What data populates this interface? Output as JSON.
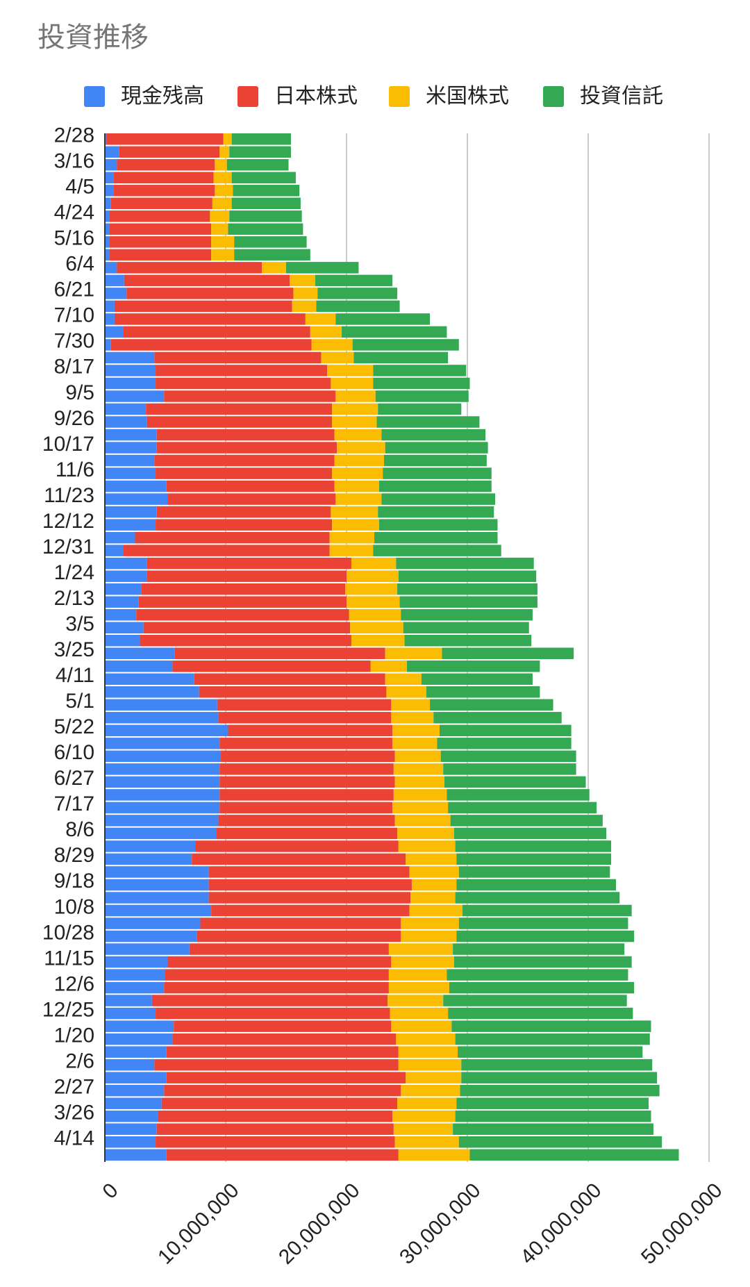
{
  "chart_data": {
    "type": "bar",
    "orientation": "horizontal",
    "stacked": true,
    "title": "投資推移",
    "legend_position": "top",
    "grid": true,
    "xlim": [
      0,
      50000000
    ],
    "x_ticks": [
      0,
      10000000,
      20000000,
      30000000,
      40000000,
      50000000
    ],
    "x_tick_labels": [
      "0",
      "10,000,000",
      "20,000,000",
      "30,000,000",
      "40,000,000",
      "50,000,000"
    ],
    "categories": [
      "2/28",
      "",
      "3/16",
      "",
      "4/5",
      "",
      "4/24",
      "",
      "5/16",
      "",
      "6/4",
      "",
      "6/21",
      "",
      "7/10",
      "",
      "7/30",
      "",
      "8/17",
      "",
      "9/5",
      "",
      "9/26",
      "",
      "10/17",
      "",
      "11/6",
      "",
      "11/23",
      "",
      "12/12",
      "",
      "12/31",
      "",
      "1/24",
      "",
      "2/13",
      "",
      "3/5",
      "",
      "3/25",
      "",
      "4/11",
      "",
      "5/1",
      "",
      "5/22",
      "",
      "6/10",
      "",
      "6/27",
      "",
      "7/17",
      "",
      "8/6",
      "",
      "8/29",
      "",
      "9/18",
      "",
      "10/8",
      "",
      "10/28",
      "",
      "11/15",
      "",
      "12/6",
      "",
      "12/25",
      "",
      "1/20",
      "",
      "2/6",
      "",
      "2/27",
      "",
      "3/26",
      "",
      "4/14",
      ""
    ],
    "series": [
      {
        "name": "現金残高",
        "color": "#4285F4",
        "values": [
          100000,
          1200000,
          1000000,
          700000,
          700000,
          500000,
          400000,
          400000,
          400000,
          400000,
          1000000,
          1600000,
          1800000,
          800000,
          800000,
          1500000,
          500000,
          4100000,
          4200000,
          4200000,
          4900000,
          3400000,
          3500000,
          4300000,
          4300000,
          4100000,
          4200000,
          5100000,
          5200000,
          4300000,
          4200000,
          2500000,
          1500000,
          3500000,
          3500000,
          3000000,
          2800000,
          2600000,
          3200000,
          2900000,
          5800000,
          5600000,
          7400000,
          7800000,
          9300000,
          9400000,
          10200000,
          9500000,
          9600000,
          9500000,
          9500000,
          9500000,
          9500000,
          9400000,
          9200000,
          7500000,
          7200000,
          8600000,
          8600000,
          8600000,
          8800000,
          7900000,
          7600000,
          7000000,
          5200000,
          5000000,
          4900000,
          3900000,
          4200000,
          5700000,
          5600000,
          5100000,
          4100000,
          5100000,
          4900000,
          4700000,
          4400000,
          4300000,
          4200000,
          5100000
        ]
      },
      {
        "name": "日本株式",
        "color": "#EA4335",
        "values": [
          9700000,
          8300000,
          8100000,
          8300000,
          8400000,
          8400000,
          8300000,
          8400000,
          8400000,
          8400000,
          12000000,
          13700000,
          13800000,
          14700000,
          15800000,
          15500000,
          16600000,
          13800000,
          14200000,
          14500000,
          14200000,
          15400000,
          15300000,
          14700000,
          14900000,
          14900000,
          14600000,
          13900000,
          13900000,
          14400000,
          14600000,
          16100000,
          17100000,
          16900000,
          16500000,
          16900000,
          17200000,
          17600000,
          17100000,
          17500000,
          17400000,
          16400000,
          15800000,
          15500000,
          14400000,
          14300000,
          13600000,
          14300000,
          14400000,
          14400000,
          14500000,
          14400000,
          14300000,
          14600000,
          15000000,
          16800000,
          17700000,
          16600000,
          16800000,
          16700000,
          16400000,
          16600000,
          16900000,
          16500000,
          18500000,
          18500000,
          18600000,
          19500000,
          19400000,
          18000000,
          18500000,
          19200000,
          20200000,
          19800000,
          19600000,
          19500000,
          19400000,
          19600000,
          19800000,
          19200000
        ]
      },
      {
        "name": "米国株式",
        "color": "#FBBC04",
        "values": [
          700000,
          800000,
          1000000,
          1500000,
          1500000,
          1600000,
          1600000,
          1400000,
          1900000,
          1900000,
          2000000,
          2100000,
          2000000,
          2000000,
          2500000,
          2600000,
          3400000,
          2700000,
          3800000,
          3500000,
          3300000,
          3800000,
          3700000,
          3900000,
          4000000,
          4100000,
          4200000,
          3700000,
          3800000,
          3900000,
          3900000,
          3700000,
          3600000,
          3700000,
          4300000,
          4300000,
          4400000,
          4300000,
          4400000,
          4400000,
          4700000,
          3000000,
          3000000,
          3300000,
          3200000,
          3500000,
          3900000,
          3700000,
          3800000,
          4100000,
          4100000,
          4400000,
          4600000,
          4600000,
          4700000,
          4700000,
          4200000,
          4100000,
          3700000,
          3700000,
          4400000,
          4800000,
          4600000,
          5300000,
          5200000,
          4800000,
          5000000,
          4600000,
          4800000,
          5000000,
          4900000,
          4900000,
          5200000,
          4600000,
          4900000,
          4900000,
          5200000,
          4900000,
          5300000,
          5900000
        ]
      },
      {
        "name": "投資信託",
        "color": "#34A853",
        "values": [
          4900000,
          5100000,
          5100000,
          5300000,
          5500000,
          5700000,
          6000000,
          6200000,
          6000000,
          6300000,
          6000000,
          6400000,
          6600000,
          6900000,
          7800000,
          8700000,
          8800000,
          7800000,
          7700000,
          8000000,
          7700000,
          6900000,
          8500000,
          8600000,
          8500000,
          8500000,
          9000000,
          9300000,
          9400000,
          9600000,
          9800000,
          10200000,
          10600000,
          11400000,
          11400000,
          11600000,
          11400000,
          10900000,
          10400000,
          10500000,
          10900000,
          11000000,
          9200000,
          9400000,
          10200000,
          10600000,
          10900000,
          11100000,
          11200000,
          11000000,
          11700000,
          11800000,
          12300000,
          12600000,
          12600000,
          12900000,
          12800000,
          12500000,
          13200000,
          13600000,
          14000000,
          14000000,
          14700000,
          14200000,
          14700000,
          15000000,
          15300000,
          15200000,
          15300000,
          16500000,
          16100000,
          15300000,
          15800000,
          16200000,
          16500000,
          15900000,
          16200000,
          16600000,
          16800000,
          17300000
        ]
      }
    ]
  }
}
